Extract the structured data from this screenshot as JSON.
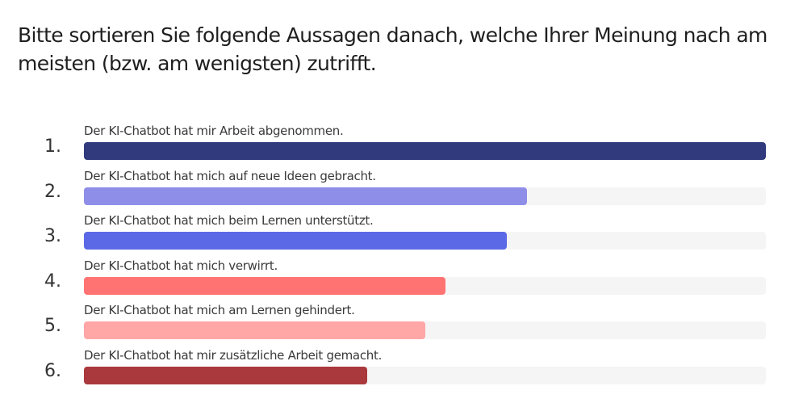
{
  "question": "Bitte sortieren Sie folgende Aussagen danach, welche Ihrer Meinung nach am meisten (bzw. am wenigsten) zutrifft.",
  "chart_data": {
    "type": "bar",
    "orientation": "horizontal",
    "title": "",
    "categories": [
      "Der KI-Chatbot hat mir Arbeit abgenommen.",
      "Der KI-Chatbot hat mich auf neue Ideen gebracht.",
      "Der KI-Chatbot hat mich beim Lernen unterstützt.",
      "Der KI-Chatbot hat mich verwirrt.",
      "Der KI-Chatbot hat mich am Lernen gehindert.",
      "Der KI-Chatbot hat mir zusätzliche Arbeit gemacht."
    ],
    "ranks": [
      "1.",
      "2.",
      "3.",
      "4.",
      "5.",
      "6."
    ],
    "values": [
      1.0,
      0.65,
      0.62,
      0.53,
      0.5,
      0.415
    ],
    "colors": [
      "#303a7c",
      "#8e8ee8",
      "#5b69e6",
      "#ff7372",
      "#ffa6a6",
      "#a9393c"
    ],
    "track_color": "#f5f5f5",
    "grid": false,
    "legend": "none"
  }
}
